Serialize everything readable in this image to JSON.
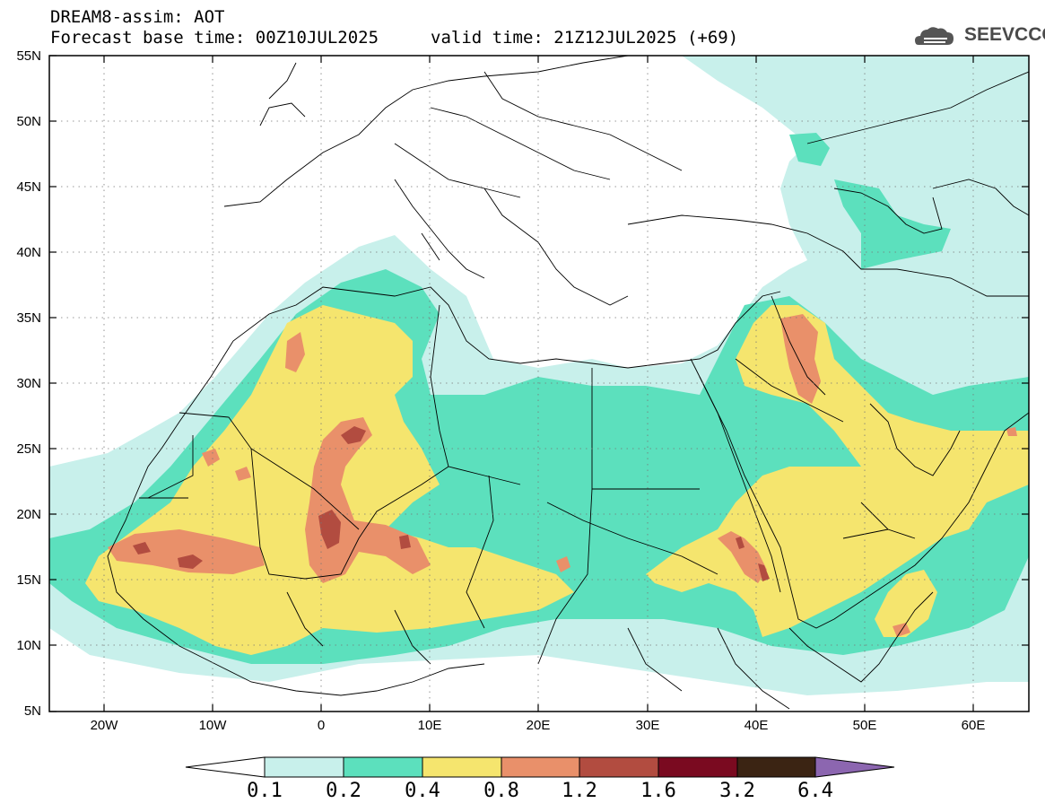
{
  "header": {
    "title": "DREAM8-assim: AOT",
    "base_time": "Forecast base time: 00Z10JUL2025",
    "valid_time": "valid time: 21Z12JUL2025 (+69)"
  },
  "logo": {
    "text": "SEEVCCC",
    "icon": "cloud-logo-icon"
  },
  "map": {
    "latitude_labels": [
      "55N",
      "50N",
      "45N",
      "40N",
      "35N",
      "30N",
      "25N",
      "20N",
      "15N",
      "10N",
      "5N"
    ],
    "longitude_labels": [
      "20W",
      "10W",
      "0",
      "10E",
      "20E",
      "30E",
      "40E",
      "50E",
      "60E"
    ],
    "grid": "dotted"
  },
  "colorbar": {
    "labels": [
      "0.1",
      "0.2",
      "0.4",
      "0.8",
      "1.2",
      "1.6",
      "3.2",
      "6.4"
    ],
    "colors": [
      "#c8f0eb",
      "#5ce0bd",
      "#f5e56e",
      "#e9906a",
      "#b24c40",
      "#7a0a20",
      "#3b2413",
      "#8c66b0"
    ]
  }
}
